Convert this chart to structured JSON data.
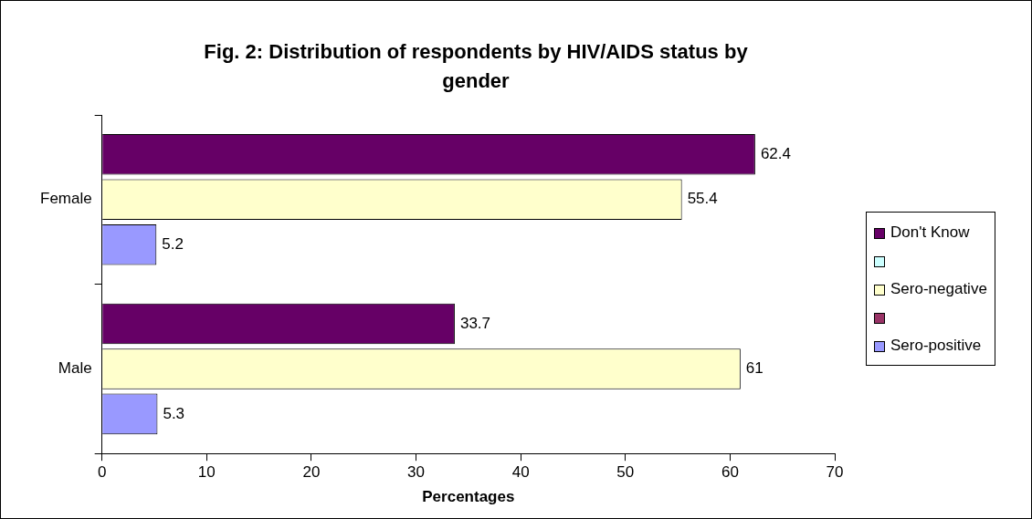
{
  "chart_data": {
    "type": "bar",
    "orientation": "horizontal",
    "title": "Fig. 2: Distribution of respondents by HIV/AIDS status by gender",
    "xlabel": "Percentages",
    "categories": [
      "Female",
      "Male"
    ],
    "series": [
      {
        "name": "Don't Know",
        "color": "#660066",
        "values": [
          62.4,
          33.7
        ]
      },
      {
        "color": "#ccffff",
        "values": [
          null,
          null
        ]
      },
      {
        "name": "Sero-negative",
        "color": "#ffffcc",
        "values": [
          55.4,
          61
        ]
      },
      {
        "color": "#993366",
        "values": [
          null,
          null
        ]
      },
      {
        "name": "Sero-positive",
        "color": "#9999ff",
        "values": [
          5.2,
          5.3
        ]
      }
    ],
    "xlim": [
      0,
      70
    ],
    "xticks": [
      0,
      10,
      20,
      30,
      40,
      50,
      60,
      70
    ],
    "grid": false,
    "legend": "right",
    "data_labels": true
  }
}
